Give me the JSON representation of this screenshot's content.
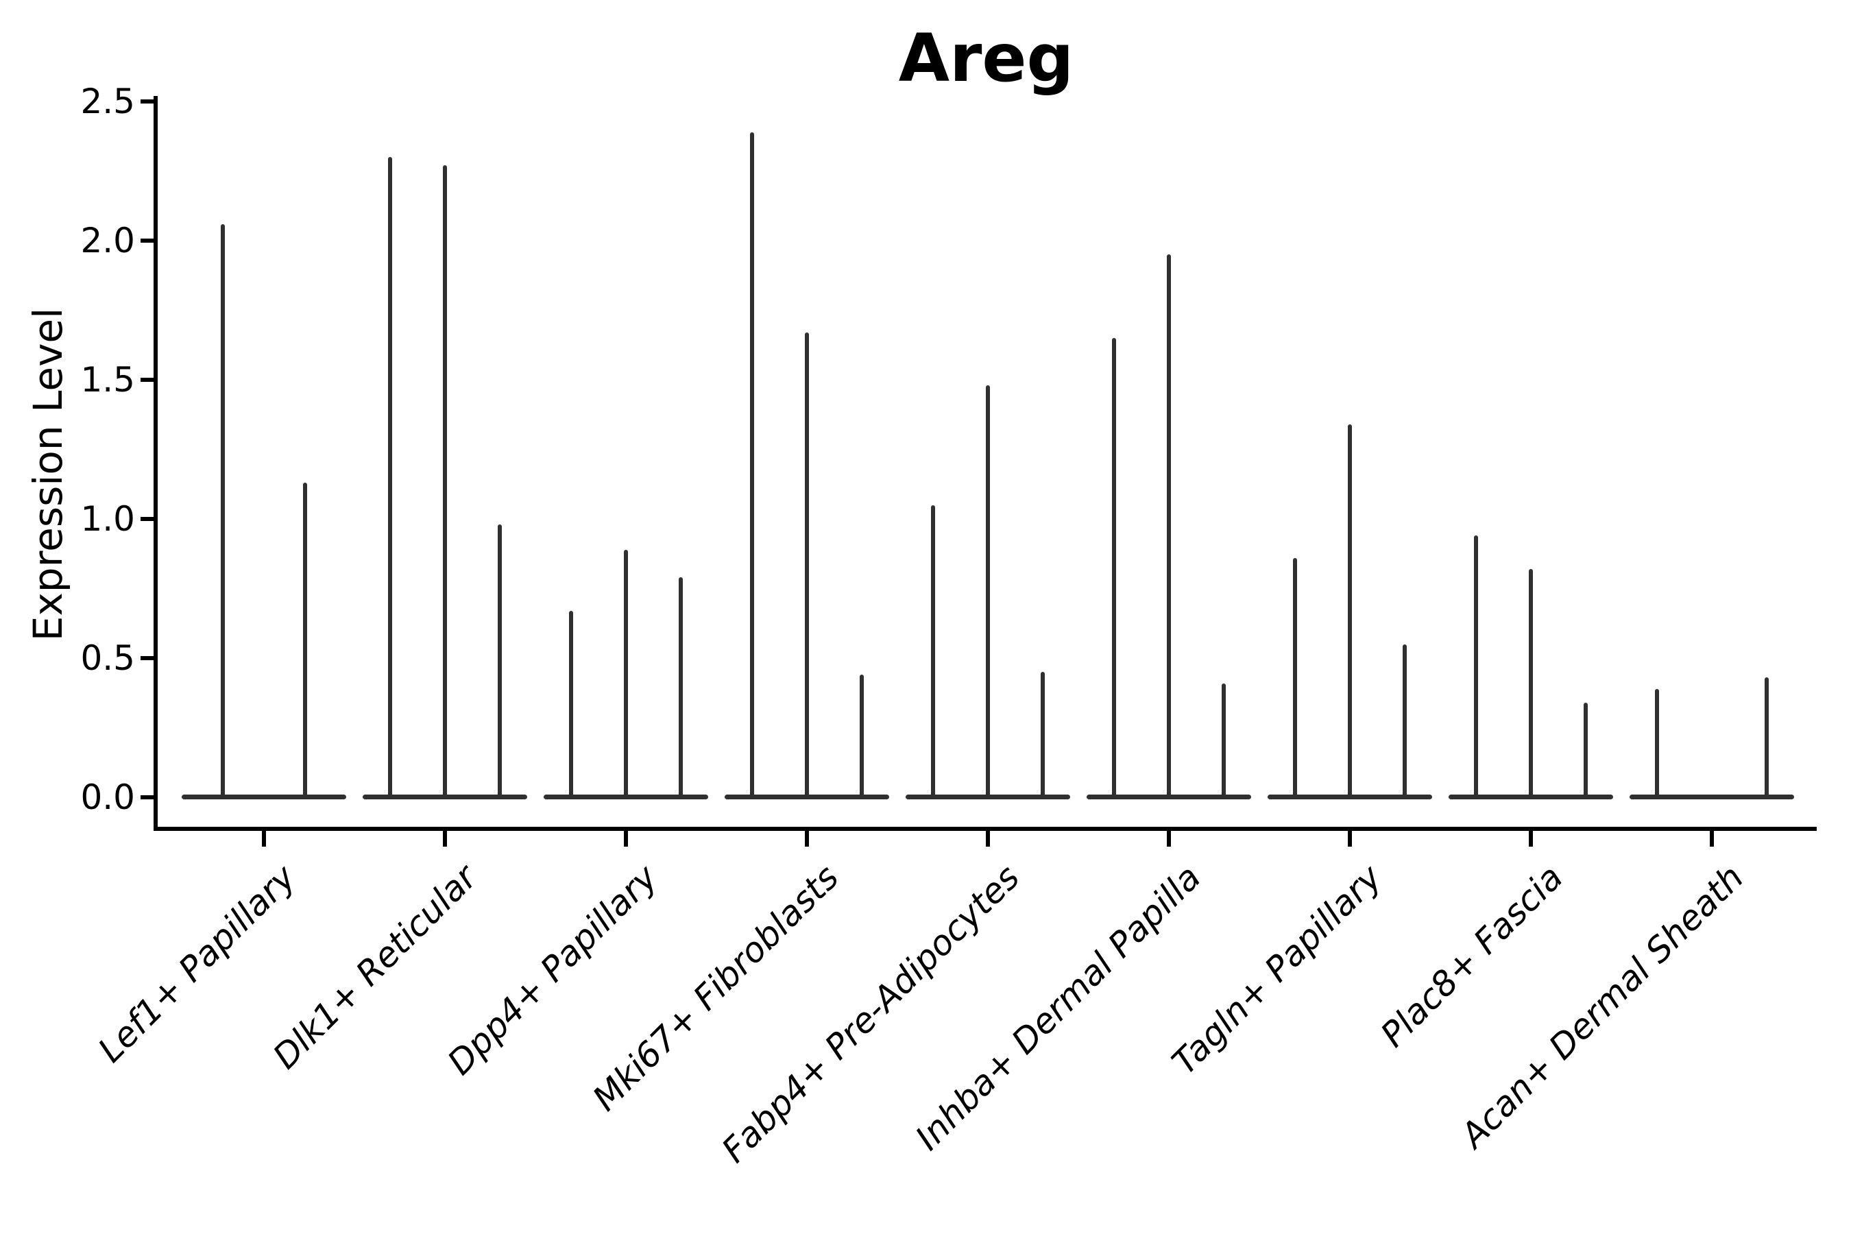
{
  "chart_data": {
    "type": "violin",
    "title": "Areg",
    "ylabel": "Expression Level",
    "xlabel": "",
    "ylim": [
      0.0,
      2.5
    ],
    "grid": false,
    "legend_position": "none",
    "x_tick_rotation_deg": 45,
    "y_ticks": [
      {
        "label": "0.0",
        "value": 0.0
      },
      {
        "label": "0.5",
        "value": 0.5
      },
      {
        "label": "1.0",
        "value": 1.0
      },
      {
        "label": "1.5",
        "value": 1.5
      },
      {
        "label": "2.0",
        "value": 2.0
      },
      {
        "label": "2.5",
        "value": 2.5
      }
    ],
    "categories": [
      "Lef1+ Papillary",
      "Dlk1+ Reticular",
      "Dpp4+ Papillary",
      "Mki67+ Fibroblasts",
      "Fabp4+ Pre-Adipocytes",
      "Inhba+ Dermal Papilla",
      "Tagln+ Papillary",
      "Plac8+ Fascia",
      "Acan+ Dermal Sheath"
    ],
    "groups": [
      {
        "category": "Lef1+ Papillary",
        "spike_heights": [
          2.06,
          1.13
        ]
      },
      {
        "category": "Dlk1+ Reticular",
        "spike_heights": [
          2.3,
          2.27,
          0.98
        ]
      },
      {
        "category": "Dpp4+ Papillary",
        "spike_heights": [
          0.67,
          0.89,
          0.79
        ]
      },
      {
        "category": "Mki67+ Fibroblasts",
        "spike_heights": [
          2.39,
          1.67,
          0.44
        ]
      },
      {
        "category": "Fabp4+ Pre-Adipocytes",
        "spike_heights": [
          1.05,
          1.48,
          0.45
        ]
      },
      {
        "category": "Inhba+ Dermal Papilla",
        "spike_heights": [
          1.65,
          1.95,
          0.41
        ]
      },
      {
        "category": "Tagln+ Papillary",
        "spike_heights": [
          0.86,
          1.34,
          0.55
        ]
      },
      {
        "category": "Plac8+ Fascia",
        "spike_heights": [
          0.94,
          0.82,
          0.34
        ]
      },
      {
        "category": "Acan+ Dermal Sheath",
        "spike_heights": [
          0.39,
          0,
          0.43
        ]
      }
    ],
    "colors": {
      "violin": "#303030",
      "axis": "#000000",
      "text": "#000000",
      "background": "#ffffff"
    }
  }
}
